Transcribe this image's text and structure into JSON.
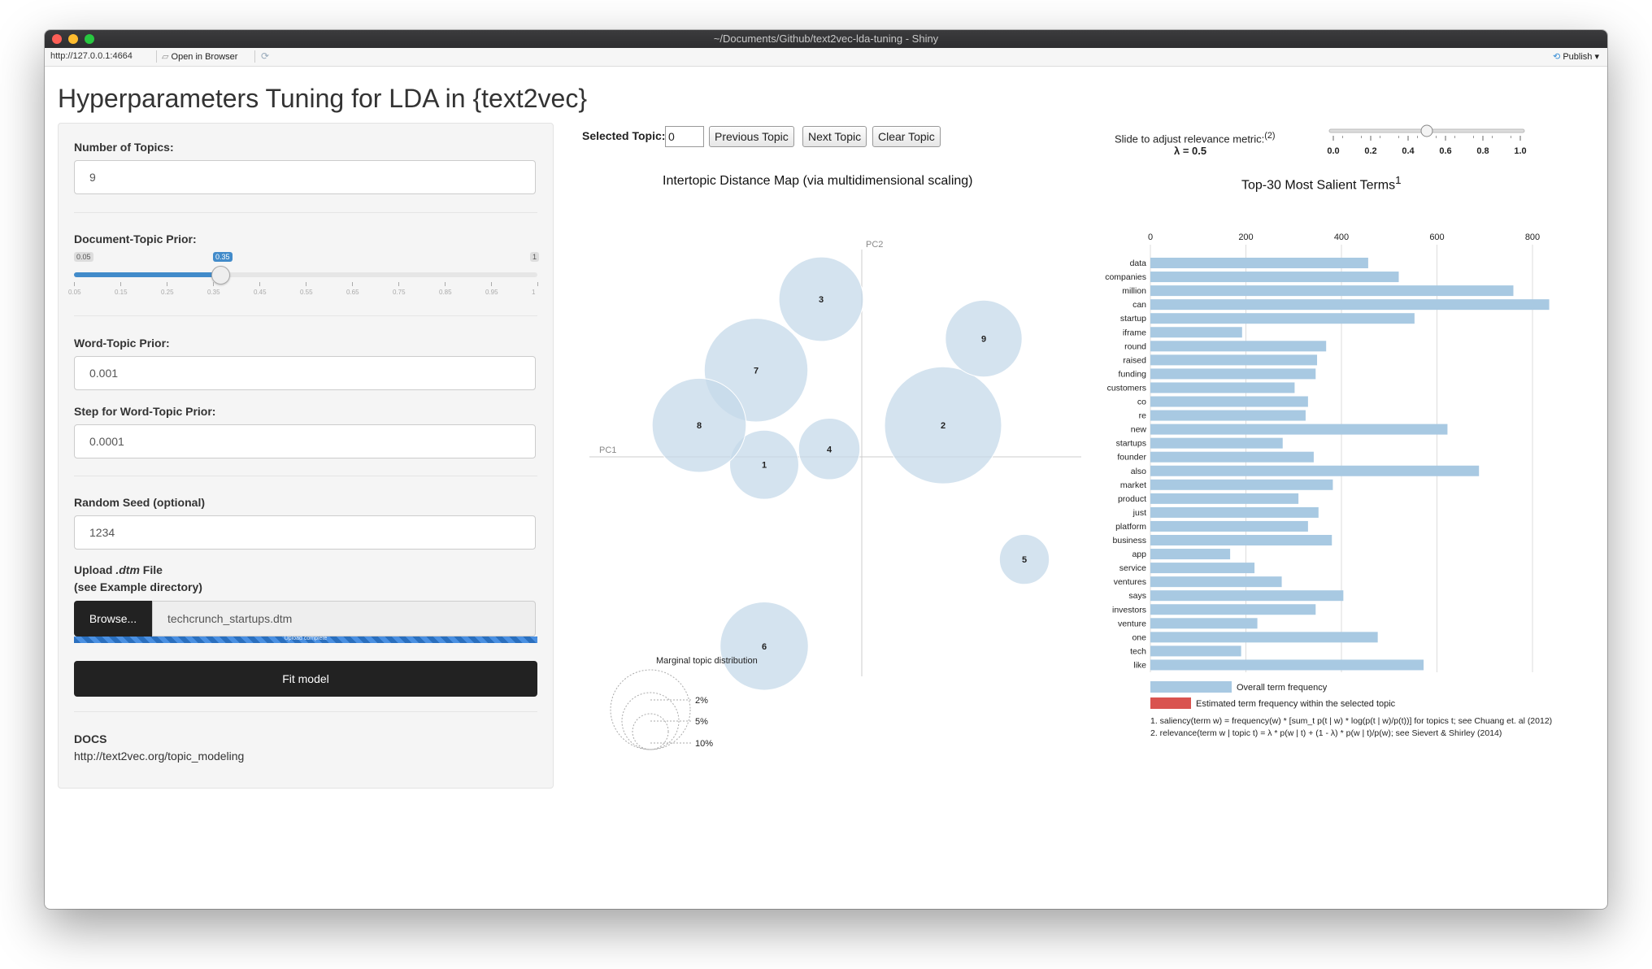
{
  "window": {
    "title": "~/Documents/Github/text2vec-lda-tuning - Shiny",
    "url": "http://127.0.0.1:4664",
    "open_in_browser": "Open in Browser",
    "publish": "Publish"
  },
  "app_title": "Hyperparameters Tuning for LDA in {text2vec}",
  "sidebar": {
    "num_topics_label": "Number of Topics:",
    "num_topics_value": "9",
    "doc_topic_prior_label": "Document-Topic Prior:",
    "doc_topic_prior": {
      "min": "0.05",
      "max": "1",
      "value": "0.35",
      "value_fraction": 0.316,
      "ticks": [
        "0.05",
        "0.15",
        "0.25",
        "0.35",
        "0.45",
        "0.55",
        "0.65",
        "0.75",
        "0.85",
        "0.95",
        "1"
      ]
    },
    "word_topic_prior_label": "Word-Topic Prior:",
    "word_topic_prior_value": "0.001",
    "step_label": "Step for Word-Topic Prior:",
    "step_value": "0.0001",
    "seed_label": "Random Seed (optional)",
    "seed_value": "1234",
    "upload_label_a": "Upload ",
    "upload_label_b": ".dtm",
    "upload_label_c": " File",
    "upload_label_2": "(see Example directory)",
    "browse_label": "Browse...",
    "file_name": "techcrunch_startups.dtm",
    "upload_status": "Upload complete",
    "fit_button": "Fit model",
    "docs_label": "DOCS",
    "docs_link": "http://text2vec.org/topic_modeling"
  },
  "controls": {
    "selected_topic_label": "Selected Topic:",
    "selected_topic_value": "0",
    "prev_button": "Previous Topic",
    "next_button": "Next Topic",
    "clear_button": "Clear Topic",
    "relevance_label": "Slide to adjust relevance metric:",
    "relevance_sup": "(2)",
    "lambda_text": "λ = 0.5",
    "lambda_value": 0.5,
    "lambda_ticks": [
      "0.0",
      "0.2",
      "0.4",
      "0.6",
      "0.8",
      "1.0"
    ]
  },
  "chart_data": [
    {
      "type": "scatter",
      "title": "Intertopic Distance Map (via multidimensional scaling)",
      "xlabel": "PC1",
      "ylabel": "PC2",
      "points": [
        {
          "topic": "1",
          "x": -0.12,
          "y": -0.01,
          "r": 0.36
        },
        {
          "topic": "2",
          "x": 0.1,
          "y": 0.04,
          "r": 0.61
        },
        {
          "topic": "3",
          "x": -0.05,
          "y": 0.2,
          "r": 0.44
        },
        {
          "topic": "4",
          "x": -0.04,
          "y": 0.01,
          "r": 0.32
        },
        {
          "topic": "5",
          "x": 0.2,
          "y": -0.13,
          "r": 0.26
        },
        {
          "topic": "6",
          "x": -0.12,
          "y": -0.24,
          "r": 0.46
        },
        {
          "topic": "7",
          "x": -0.13,
          "y": 0.11,
          "r": 0.54
        },
        {
          "topic": "8",
          "x": -0.2,
          "y": 0.04,
          "r": 0.49
        },
        {
          "topic": "9",
          "x": 0.15,
          "y": 0.15,
          "r": 0.4
        }
      ],
      "legend_title": "Marginal topic distribution",
      "legend_sizes": [
        "2%",
        "5%",
        "10%"
      ]
    },
    {
      "type": "bar",
      "title": "Top-30 Most Salient Terms",
      "title_sup": "1",
      "categories": [
        "data",
        "companies",
        "million",
        "can",
        "startup",
        "iframe",
        "round",
        "raised",
        "funding",
        "customers",
        "co",
        "re",
        "new",
        "startups",
        "founder",
        "also",
        "market",
        "product",
        "just",
        "platform",
        "business",
        "app",
        "service",
        "ventures",
        "says",
        "investors",
        "venture",
        "one",
        "tech",
        "like"
      ],
      "values": [
        456,
        520,
        760,
        835,
        553,
        192,
        368,
        349,
        346,
        302,
        330,
        325,
        622,
        277,
        342,
        688,
        382,
        310,
        352,
        330,
        380,
        167,
        218,
        275,
        404,
        346,
        224,
        476,
        190,
        572
      ],
      "xlim": [
        0,
        900
      ],
      "xticks": [
        "0",
        "200",
        "400",
        "600",
        "800"
      ],
      "legend": [
        "Overall term frequency",
        "Estimated term frequency within the selected topic"
      ],
      "colors": {
        "overall": "#a8c9e2",
        "selected": "#d9534f"
      },
      "footnotes": [
        "1. saliency(term w) = frequency(w) * [sum_t p(t | w) * log(p(t | w)/p(t))] for topics t; see Chuang et. al (2012)",
        "2. relevance(term w | topic t) = λ * p(w | t) + (1 - λ) * p(w | t)/p(w); see Sievert & Shirley (2014)"
      ]
    }
  ]
}
